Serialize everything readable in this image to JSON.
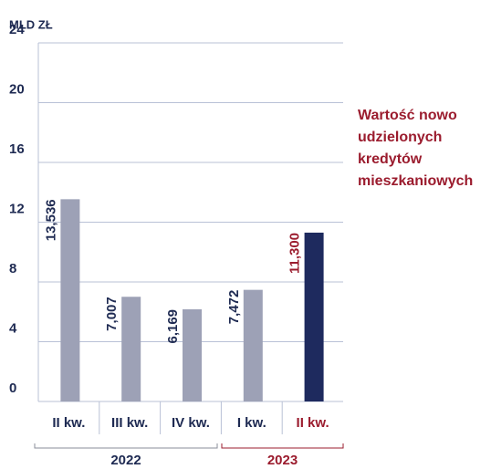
{
  "chart_data": {
    "type": "bar",
    "unit_label": "MLD ZŁ",
    "annotation": [
      "Wartość nowo",
      "udzielonych",
      "kredytów",
      "mieszkaniowych"
    ],
    "annotation_color": "#9b1c2e",
    "categories": [
      "II kw.",
      "III kw.",
      "IV kw.",
      "I kw.",
      "II kw."
    ],
    "values": [
      13.536,
      7.007,
      6.169,
      7.472,
      11.3
    ],
    "value_labels": [
      "13,536",
      "7,007",
      "6,169",
      "7,472",
      "11,300"
    ],
    "colors": [
      "#9da1b6",
      "#9da1b6",
      "#9da1b6",
      "#9da1b6",
      "#1e2a5e"
    ],
    "label_colors": [
      "#1e2a52",
      "#1e2a52",
      "#1e2a52",
      "#1e2a52",
      "#9b1c2e"
    ],
    "groups": [
      {
        "label": "2022",
        "color": "#8a8d99"
      },
      {
        "label": "2023",
        "color": "#9b1c2e"
      }
    ],
    "ylim": [
      0,
      24
    ],
    "yticks": [
      0,
      4,
      8,
      12,
      16,
      20,
      24
    ],
    "grid": true
  }
}
